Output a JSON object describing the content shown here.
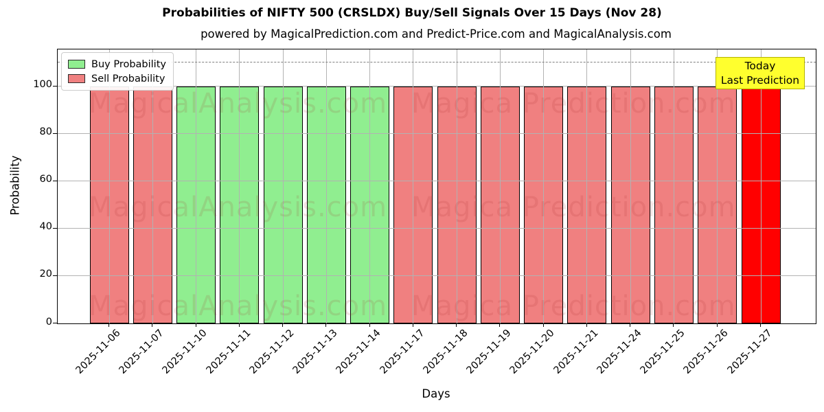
{
  "figure": {
    "title": "Probabilities of NIFTY 500 (CRSLDX) Buy/Sell Signals Over 15 Days (Nov 28)",
    "subtitle": "powered by MagicalPrediction.com and Predict-Price.com and MagicalAnalysis.com"
  },
  "chart_data": {
    "type": "bar",
    "title": "Probabilities of NIFTY 500 (CRSLDX) Buy/Sell Signals Over 15 Days (Nov 28)",
    "subtitle": "powered by MagicalPrediction.com and Predict-Price.com and MagicalAnalysis.com",
    "xlabel": "Days",
    "ylabel": "Probability",
    "ylim": [
      0,
      115.5
    ],
    "yticks": [
      0,
      20,
      40,
      60,
      80,
      100
    ],
    "grid": true,
    "reference_line": {
      "y": 110,
      "style": "dashed",
      "color": "#7d7d7d"
    },
    "categories": [
      "2025-11-06",
      "2025-11-07",
      "2025-11-10",
      "2025-11-11",
      "2025-11-12",
      "2025-11-13",
      "2025-11-14",
      "2025-11-17",
      "2025-11-18",
      "2025-11-19",
      "2025-11-20",
      "2025-11-21",
      "2025-11-24",
      "2025-11-25",
      "2025-11-26",
      "2025-11-27"
    ],
    "values": [
      100,
      100,
      100,
      100,
      100,
      100,
      100,
      100,
      100,
      100,
      100,
      100,
      100,
      100,
      100,
      100
    ],
    "signals": [
      "sell",
      "sell",
      "buy",
      "buy",
      "buy",
      "buy",
      "buy",
      "sell",
      "sell",
      "sell",
      "sell",
      "sell",
      "sell",
      "sell",
      "sell",
      "today_sell"
    ],
    "colors": {
      "buy": "#90ee90",
      "sell": "#f08080",
      "today_sell": "#ff0000",
      "bar_edge": "#000000",
      "gridline": "#b2b2b2"
    },
    "legend": {
      "position": "upper-left",
      "items": [
        {
          "label": "Buy Probability",
          "color": "#90ee90"
        },
        {
          "label": "Sell Probability",
          "color": "#f08080"
        }
      ]
    },
    "annotation": {
      "line1": "Today",
      "line2": "Last Prediction",
      "bg": "#ffff2e",
      "border": "#b3b300"
    },
    "watermarks": {
      "left_text": "MagicalAnalysis.com",
      "right_text": "Magica Prediction.com",
      "color": "rgba(165,40,40,0.13)"
    }
  }
}
